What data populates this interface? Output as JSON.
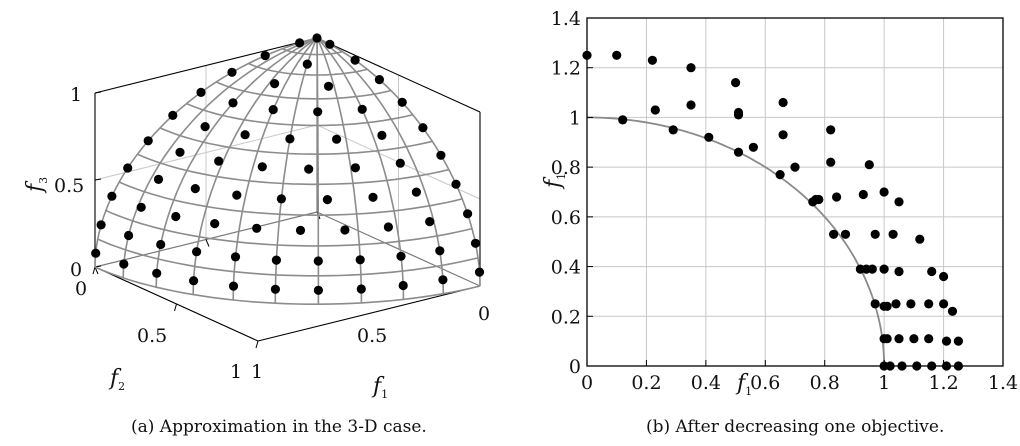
{
  "captions": {
    "left": "(a) Approximation in the 3-D case.",
    "right": "(b) After decreasing one objective."
  },
  "colors": {
    "wire": "#8c8c8c",
    "grid": "#c8c8c8",
    "points": "#000000",
    "curve": "#8a8a8a",
    "axis": "#000000"
  },
  "chart_data": [
    {
      "type": "scatter",
      "title": "",
      "surface": "unit sphere octant",
      "axes": {
        "x": {
          "label": "f",
          "sub": "1",
          "range": [
            0,
            1
          ],
          "ticks": [
            "0",
            "0.5",
            "1"
          ]
        },
        "y": {
          "label": "f",
          "sub": "2",
          "range": [
            0,
            1
          ],
          "ticks": [
            "0",
            "0.5",
            "1"
          ]
        },
        "z": {
          "label": "f",
          "sub": "3",
          "range": [
            0,
            1
          ],
          "ticks": [
            "0",
            "0.5",
            "1"
          ]
        }
      },
      "grid": true,
      "point_rings_deg": [
        0,
        9,
        18,
        27,
        36,
        45,
        54,
        63,
        72,
        81
      ],
      "points_per_ring": [
        11,
        11,
        10,
        9,
        8,
        7,
        6,
        4,
        3,
        2
      ]
    },
    {
      "type": "scatter",
      "title": "",
      "xlabel": "f",
      "xlabel_sub": "1",
      "ylabel": "f",
      "ylabel_sub": "1",
      "xlim": [
        0,
        1.4
      ],
      "ylim": [
        0,
        1.4
      ],
      "xticks": [
        "0",
        "0.2",
        "0.4",
        "0.6",
        "0.8",
        "1",
        "1.2",
        "1.4"
      ],
      "yticks": [
        "0",
        "0.2",
        "0.4",
        "0.6",
        "0.8",
        "1",
        "1.2",
        "1.4"
      ],
      "grid": true,
      "curve": "quarter circle, radius 1",
      "series": [
        {
          "points": [
            [
              0.0,
              1.25
            ],
            [
              0.1,
              1.25
            ],
            [
              0.22,
              1.23
            ],
            [
              0.35,
              1.2
            ],
            [
              0.5,
              1.14
            ],
            [
              0.66,
              1.06
            ],
            [
              0.82,
              0.95
            ],
            [
              0.95,
              0.81
            ],
            [
              1.05,
              0.66
            ],
            [
              1.12,
              0.51
            ],
            [
              1.2,
              0.36
            ],
            [
              1.23,
              0.22
            ],
            [
              1.25,
              0.1
            ],
            [
              1.25,
              0.0
            ],
            [
              0.12,
              0.99
            ],
            [
              0.23,
              1.03
            ],
            [
              0.35,
              1.05
            ],
            [
              0.51,
              1.01
            ],
            [
              0.29,
              0.95
            ],
            [
              0.41,
              0.92
            ],
            [
              0.51,
              1.02
            ],
            [
              0.56,
              0.88
            ],
            [
              0.66,
              0.93
            ],
            [
              0.7,
              0.8
            ],
            [
              0.76,
              0.66
            ],
            [
              0.82,
              0.82
            ],
            [
              0.84,
              0.68
            ],
            [
              0.87,
              0.53
            ],
            [
              0.93,
              0.69
            ],
            [
              1.0,
              0.7
            ],
            [
              0.97,
              0.53
            ],
            [
              1.03,
              0.53
            ],
            [
              1.0,
              0.39
            ],
            [
              1.05,
              0.38
            ],
            [
              0.65,
              0.77
            ],
            [
              0.51,
              0.86
            ],
            [
              0.78,
              0.67
            ],
            [
              0.77,
              0.67
            ],
            [
              0.94,
              0.39
            ],
            [
              0.96,
              0.39
            ],
            [
              0.92,
              0.39
            ],
            [
              0.97,
              0.25
            ],
            [
              1.0,
              0.24
            ],
            [
              1.04,
              0.25
            ],
            [
              1.09,
              0.25
            ],
            [
              1.15,
              0.25
            ],
            [
              1.2,
              0.25
            ],
            [
              0.83,
              0.53
            ],
            [
              1.16,
              0.38
            ],
            [
              1.05,
              0.11
            ],
            [
              1.1,
              0.11
            ],
            [
              1.15,
              0.11
            ],
            [
              1.21,
              0.1
            ],
            [
              1.0,
              0.11
            ],
            [
              1.01,
              0.24
            ],
            [
              1.0,
              0.0
            ],
            [
              1.02,
              0.0
            ],
            [
              1.06,
              0.0
            ],
            [
              1.11,
              0.0
            ],
            [
              1.16,
              0.0
            ],
            [
              1.21,
              0.0
            ],
            [
              1.01,
              0.11
            ]
          ]
        }
      ]
    }
  ]
}
